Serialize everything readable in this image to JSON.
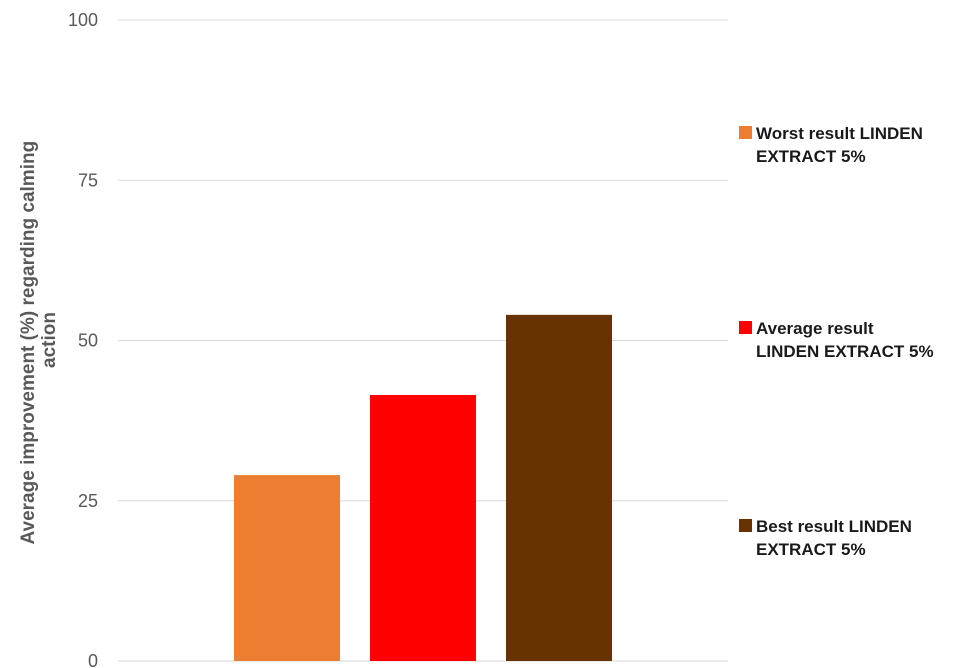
{
  "chart_data": {
    "type": "bar",
    "title": "",
    "xlabel": "",
    "ylabel": "Average improvement (%) regarding calming action",
    "ylabel_lines": [
      "Average improvement (%) regarding calming",
      "action"
    ],
    "ylim": [
      0,
      100
    ],
    "yticks": [
      0,
      25,
      50,
      75,
      100
    ],
    "grid": true,
    "legend_position": "right",
    "series": [
      {
        "name": "Worst result LINDEN EXTRACT 5%",
        "legend_lines": [
          "Worst result LINDEN",
          "EXTRACT 5%"
        ],
        "value": 29,
        "color": "#ED7D31"
      },
      {
        "name": "Average result LINDEN EXTRACT 5%",
        "legend_lines": [
          "Average result",
          "LINDEN EXTRACT 5%"
        ],
        "value": 41.5,
        "color": "#FF0000"
      },
      {
        "name": "Best result LINDEN EXTRACT 5%",
        "legend_lines": [
          "Best result LINDEN",
          "EXTRACT 5%"
        ],
        "value": 54,
        "color": "#663300"
      }
    ]
  }
}
